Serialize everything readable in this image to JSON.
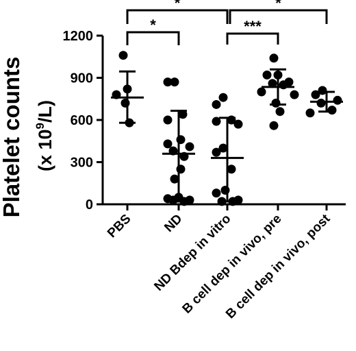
{
  "chart_data": {
    "type": "scatter",
    "ylabel_line1": "Platelet counts",
    "ylabel_line2_prefix": "(x 10",
    "ylabel_line2_exp": "9",
    "ylabel_line2_suffix": "/L)",
    "ylim": [
      0,
      1200
    ],
    "yticks": [
      0,
      300,
      600,
      900,
      1200
    ],
    "ytick_labels": [
      "0",
      "300",
      "600",
      "900",
      "1200"
    ],
    "categories": [
      "PBS",
      "ND",
      "ND Bdep in vitro",
      "B cell dep in vivo, pre",
      "B cell dep in vivo, post"
    ],
    "groups": [
      {
        "name": "PBS",
        "mean": 760,
        "sd_low": 580,
        "sd_high": 945,
        "points": [
          1060,
          820,
          780,
          720,
          580
        ]
      },
      {
        "name": "ND",
        "mean": 360,
        "sd_low": 20,
        "sd_high": 665,
        "points": [
          870,
          870,
          640,
          600,
          460,
          430,
          410,
          380,
          340,
          250,
          180,
          50,
          40,
          30,
          30,
          20
        ]
      },
      {
        "name": "ND Bdep in vitro",
        "mean": 330,
        "sd_low": 20,
        "sd_high": 615,
        "points": [
          760,
          710,
          600,
          590,
          570,
          400,
          370,
          250,
          100,
          80,
          30,
          20,
          20
        ]
      },
      {
        "name": "B cell dep in vivo, pre",
        "mean": 835,
        "sd_low": 710,
        "sd_high": 960,
        "points": [
          1040,
          920,
          920,
          870,
          860,
          850,
          800,
          780,
          720,
          660,
          560
        ]
      },
      {
        "name": "B cell dep in vivo, post",
        "mean": 730,
        "sd_low": 660,
        "sd_high": 800,
        "points": [
          810,
          780,
          740,
          720,
          670,
          650
        ]
      }
    ],
    "significance": [
      {
        "from": 0,
        "to": 1,
        "label": "*"
      },
      {
        "from": 0,
        "to": 2,
        "label": "*"
      },
      {
        "from": 2,
        "to": 3,
        "label": "***"
      },
      {
        "from": 2,
        "to": 4,
        "label": "*"
      }
    ]
  }
}
